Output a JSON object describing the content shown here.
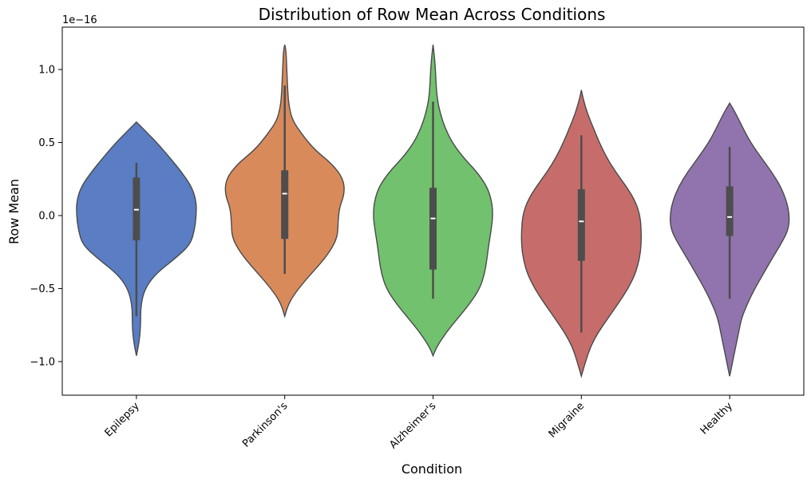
{
  "chart_data": {
    "type": "violin",
    "title": "Distribution of Row Mean Across Conditions",
    "xlabel": "Condition",
    "ylabel": "Row Mean",
    "y_scale_label": "1e−16",
    "ylim": [
      -1.23,
      1.29
    ],
    "yticks": [
      -1.0,
      -0.5,
      0.0,
      0.5,
      1.0
    ],
    "ytick_labels": [
      "−1.0",
      "−0.5",
      "0.0",
      "0.5",
      "1.0"
    ],
    "categories": [
      "Epilepsy",
      "Parkinson's",
      "Alzheimer's",
      "Migraine",
      "Healthy"
    ],
    "grid": false,
    "series": [
      {
        "category": "Epilepsy",
        "color": "#5a7dc4",
        "median": 0.04,
        "q1": -0.17,
        "q3": 0.26,
        "whisker_low": -0.69,
        "whisker_high": 0.36,
        "min": -0.96,
        "max": 0.64,
        "density": [
          [
            -0.96,
            0
          ],
          [
            -0.92,
            0.02
          ],
          [
            -0.85,
            0.05
          ],
          [
            -0.75,
            0.07
          ],
          [
            -0.62,
            0.07
          ],
          [
            -0.5,
            0.14
          ],
          [
            -0.4,
            0.32
          ],
          [
            -0.3,
            0.63
          ],
          [
            -0.2,
            0.9
          ],
          [
            -0.1,
            0.97
          ],
          [
            0.0,
            1.0
          ],
          [
            0.1,
            1.0
          ],
          [
            0.2,
            0.92
          ],
          [
            0.3,
            0.75
          ],
          [
            0.4,
            0.55
          ],
          [
            0.5,
            0.34
          ],
          [
            0.57,
            0.17
          ],
          [
            0.62,
            0.05
          ],
          [
            0.64,
            0
          ]
        ]
      },
      {
        "category": "Parkinson's",
        "color": "#d98a5b",
        "median": 0.15,
        "q1": -0.16,
        "q3": 0.31,
        "whisker_low": -0.4,
        "whisker_high": 0.89,
        "min": -0.69,
        "max": 1.17,
        "density": [
          [
            -0.69,
            0
          ],
          [
            -0.62,
            0.05
          ],
          [
            -0.55,
            0.14
          ],
          [
            -0.45,
            0.33
          ],
          [
            -0.35,
            0.55
          ],
          [
            -0.25,
            0.75
          ],
          [
            -0.15,
            0.88
          ],
          [
            -0.05,
            0.89
          ],
          [
            0.05,
            0.91
          ],
          [
            0.15,
            1.0
          ],
          [
            0.25,
            0.98
          ],
          [
            0.35,
            0.8
          ],
          [
            0.45,
            0.5
          ],
          [
            0.55,
            0.3
          ],
          [
            0.65,
            0.13
          ],
          [
            0.75,
            0.07
          ],
          [
            0.85,
            0.05
          ],
          [
            0.95,
            0.04
          ],
          [
            1.05,
            0.03
          ],
          [
            1.13,
            0.02
          ],
          [
            1.17,
            0
          ]
        ]
      },
      {
        "category": "Alzheimer's",
        "color": "#72c16e",
        "median": -0.02,
        "q1": -0.37,
        "q3": 0.19,
        "whisker_low": -0.57,
        "whisker_high": 0.78,
        "min": -0.96,
        "max": 1.17,
        "density": [
          [
            -0.96,
            0
          ],
          [
            -0.9,
            0.06
          ],
          [
            -0.8,
            0.22
          ],
          [
            -0.7,
            0.42
          ],
          [
            -0.6,
            0.62
          ],
          [
            -0.5,
            0.78
          ],
          [
            -0.4,
            0.86
          ],
          [
            -0.3,
            0.9
          ],
          [
            -0.2,
            0.93
          ],
          [
            -0.1,
            0.97
          ],
          [
            0.0,
            1.0
          ],
          [
            0.1,
            0.98
          ],
          [
            0.2,
            0.9
          ],
          [
            0.3,
            0.73
          ],
          [
            0.4,
            0.5
          ],
          [
            0.5,
            0.32
          ],
          [
            0.6,
            0.2
          ],
          [
            0.7,
            0.12
          ],
          [
            0.8,
            0.07
          ],
          [
            0.9,
            0.05
          ],
          [
            1.0,
            0.04
          ],
          [
            1.1,
            0.02
          ],
          [
            1.17,
            0
          ]
        ]
      },
      {
        "category": "Migraine",
        "color": "#c66d6c",
        "median": -0.04,
        "q1": -0.31,
        "q3": 0.18,
        "whisker_low": -0.8,
        "whisker_high": 0.55,
        "min": -1.1,
        "max": 0.86,
        "density": [
          [
            -1.1,
            0
          ],
          [
            -1.0,
            0.07
          ],
          [
            -0.9,
            0.15
          ],
          [
            -0.8,
            0.28
          ],
          [
            -0.7,
            0.45
          ],
          [
            -0.6,
            0.62
          ],
          [
            -0.5,
            0.78
          ],
          [
            -0.4,
            0.9
          ],
          [
            -0.3,
            0.97
          ],
          [
            -0.2,
            1.0
          ],
          [
            -0.1,
            1.0
          ],
          [
            0.0,
            0.98
          ],
          [
            0.1,
            0.9
          ],
          [
            0.2,
            0.75
          ],
          [
            0.3,
            0.57
          ],
          [
            0.4,
            0.42
          ],
          [
            0.5,
            0.3
          ],
          [
            0.6,
            0.2
          ],
          [
            0.7,
            0.1
          ],
          [
            0.8,
            0.03
          ],
          [
            0.86,
            0
          ]
        ]
      },
      {
        "category": "Healthy",
        "color": "#9174ad",
        "median": -0.01,
        "q1": -0.14,
        "q3": 0.2,
        "whisker_low": -0.57,
        "whisker_high": 0.47,
        "min": -1.1,
        "max": 0.77,
        "density": [
          [
            -1.1,
            0
          ],
          [
            -1.0,
            0.05
          ],
          [
            -0.9,
            0.1
          ],
          [
            -0.8,
            0.15
          ],
          [
            -0.7,
            0.2
          ],
          [
            -0.6,
            0.3
          ],
          [
            -0.5,
            0.42
          ],
          [
            -0.4,
            0.56
          ],
          [
            -0.3,
            0.7
          ],
          [
            -0.2,
            0.85
          ],
          [
            -0.1,
            0.98
          ],
          [
            0.0,
            1.0
          ],
          [
            0.1,
            0.95
          ],
          [
            0.2,
            0.85
          ],
          [
            0.3,
            0.7
          ],
          [
            0.4,
            0.52
          ],
          [
            0.5,
            0.35
          ],
          [
            0.6,
            0.22
          ],
          [
            0.7,
            0.1
          ],
          [
            0.77,
            0
          ]
        ]
      }
    ]
  }
}
